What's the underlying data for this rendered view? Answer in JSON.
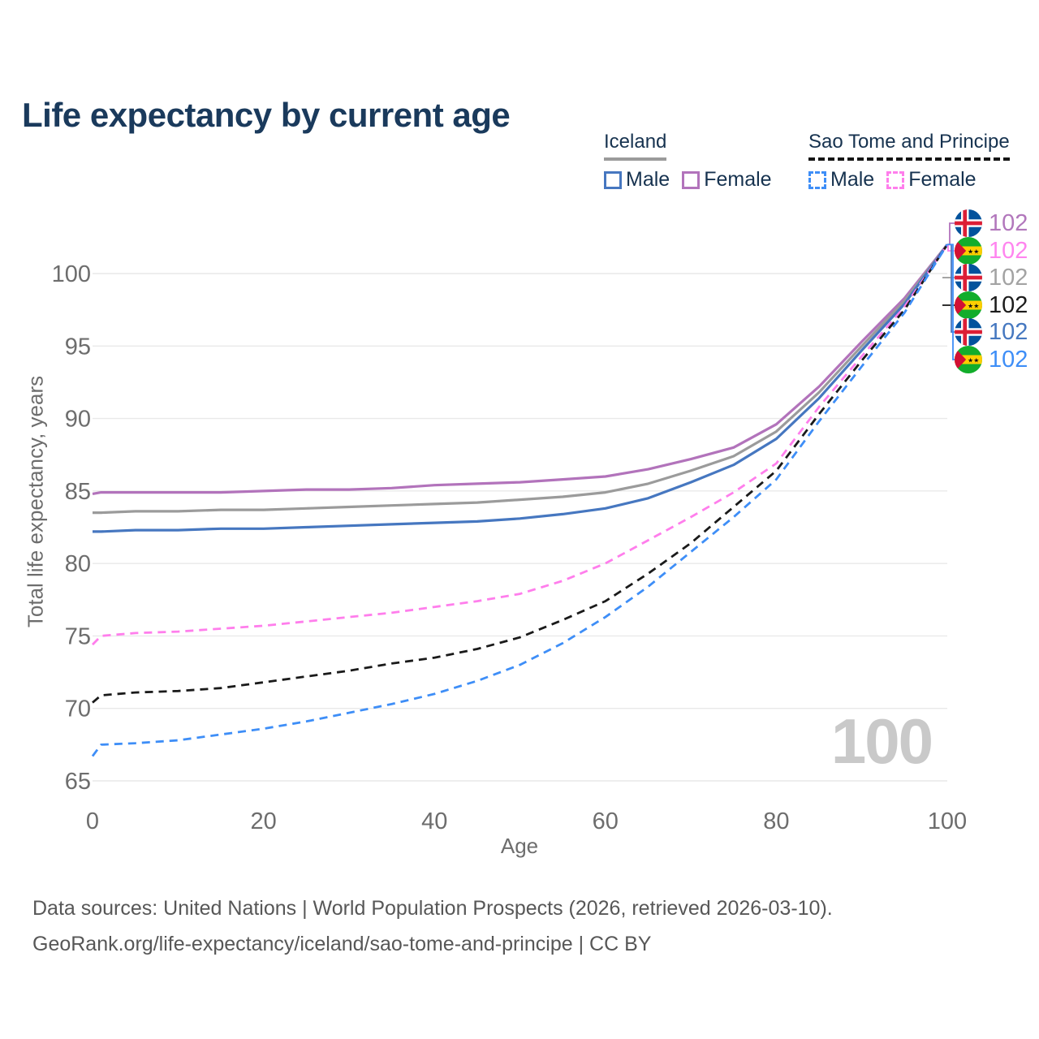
{
  "title": "Life expectancy by current age",
  "legend": {
    "groups": [
      {
        "label": "Iceland",
        "line_style": "solid",
        "underline_color": "#9b9b9b",
        "items": [
          {
            "label": "Male",
            "series": "iceland-male"
          },
          {
            "label": "Female",
            "series": "iceland-female"
          }
        ]
      },
      {
        "label": "Sao Tome and Principe",
        "line_style": "dashed",
        "underline_color": "#151515",
        "items": [
          {
            "label": "Male",
            "series": "stp-male"
          },
          {
            "label": "Female",
            "series": "stp-female"
          }
        ]
      }
    ]
  },
  "end_labels": [
    {
      "flag": "iceland",
      "series": "iceland-female",
      "value": "102",
      "color": "#b277bc"
    },
    {
      "flag": "sao-tome",
      "series": "stp-female",
      "value": "102",
      "color": "#ff85ef"
    },
    {
      "flag": "iceland",
      "series": "iceland-both",
      "value": "102",
      "color": "#a3a3a3"
    },
    {
      "flag": "sao-tome",
      "series": "stp-both",
      "value": "102",
      "color": "#1c1c1c"
    },
    {
      "flag": "iceland",
      "series": "iceland-male",
      "value": "102",
      "color": "#4678c0"
    },
    {
      "flag": "sao-tome",
      "series": "stp-male",
      "value": "102",
      "color": "#3e8ef7"
    }
  ],
  "watermark_age": "100",
  "axes": {
    "x": {
      "label": "Age",
      "ticks": [
        0,
        20,
        40,
        60,
        80,
        100
      ],
      "range": [
        0,
        100
      ]
    },
    "y": {
      "label": "Total life expectancy, years",
      "ticks": [
        65,
        70,
        75,
        80,
        85,
        90,
        95,
        100
      ],
      "range": [
        65,
        100
      ]
    }
  },
  "footer": {
    "line1": "Data sources: United Nations | World Population Prospects (2026, retrieved 2026-03-10).",
    "line2": "GeoRank.org/life-expectancy/iceland/sao-tome-and-principe | CC BY"
  },
  "chart_data": {
    "type": "line",
    "title": "Life expectancy by current age",
    "xlabel": "Age",
    "ylabel": "Total life expectancy, years",
    "xlim": [
      0,
      100
    ],
    "ylim": [
      65,
      102
    ],
    "grid": "horizontal",
    "legend_position": "top-right",
    "x": [
      0,
      1,
      5,
      10,
      15,
      20,
      25,
      30,
      35,
      40,
      45,
      50,
      55,
      60,
      65,
      70,
      75,
      80,
      85,
      90,
      95,
      100
    ],
    "series": [
      {
        "id": "iceland-female",
        "name": "Iceland Female",
        "color": "#b273bb",
        "dash": "solid",
        "values": [
          84.8,
          84.9,
          84.9,
          84.9,
          84.9,
          85.0,
          85.1,
          85.1,
          85.2,
          85.4,
          85.5,
          85.6,
          85.8,
          86.0,
          86.5,
          87.2,
          88.0,
          89.6,
          92.2,
          95.3,
          98.3,
          102
        ]
      },
      {
        "id": "iceland-both",
        "name": "Iceland Both sexes",
        "color": "#9b9b9b",
        "dash": "solid",
        "values": [
          83.5,
          83.5,
          83.6,
          83.6,
          83.7,
          83.7,
          83.8,
          83.9,
          84.0,
          84.1,
          84.2,
          84.4,
          84.6,
          84.9,
          85.5,
          86.4,
          87.4,
          89.1,
          91.8,
          95.0,
          98.1,
          102
        ]
      },
      {
        "id": "iceland-male",
        "name": "Iceland Male",
        "color": "#4677c0",
        "dash": "solid",
        "values": [
          82.2,
          82.2,
          82.3,
          82.3,
          82.4,
          82.4,
          82.5,
          82.6,
          82.7,
          82.8,
          82.9,
          83.1,
          83.4,
          83.8,
          84.5,
          85.6,
          86.8,
          88.6,
          91.4,
          94.7,
          97.9,
          102
        ]
      },
      {
        "id": "stp-female",
        "name": "Sao Tome and Principe Female",
        "color": "#ff7eec",
        "dash": "dashed",
        "values": [
          74.4,
          75.0,
          75.2,
          75.3,
          75.5,
          75.7,
          76.0,
          76.3,
          76.6,
          77.0,
          77.4,
          77.9,
          78.8,
          80.0,
          81.6,
          83.2,
          84.9,
          86.9,
          90.8,
          94.3,
          97.7,
          102
        ]
      },
      {
        "id": "stp-both",
        "name": "Sao Tome and Principe Both sexes",
        "color": "#1a1a1a",
        "dash": "dashed",
        "values": [
          70.4,
          70.9,
          71.1,
          71.2,
          71.4,
          71.8,
          72.2,
          72.6,
          73.1,
          73.5,
          74.1,
          74.9,
          76.1,
          77.4,
          79.3,
          81.4,
          83.9,
          86.4,
          90.3,
          94.0,
          97.5,
          102
        ]
      },
      {
        "id": "stp-male",
        "name": "Sao Tome and Principe Male",
        "color": "#3e8ef7",
        "dash": "dashed",
        "values": [
          66.7,
          67.5,
          67.6,
          67.8,
          68.2,
          68.6,
          69.1,
          69.7,
          70.3,
          71.0,
          71.9,
          73.0,
          74.5,
          76.3,
          78.4,
          80.8,
          83.2,
          85.8,
          89.8,
          93.6,
          97.3,
          102
        ]
      }
    ],
    "end_value_age": 100,
    "end_value": 102
  }
}
